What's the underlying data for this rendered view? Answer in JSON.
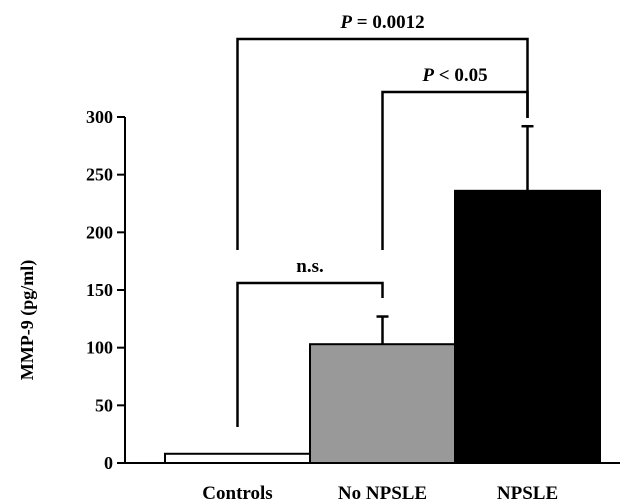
{
  "chart_data": {
    "type": "bar",
    "title": "",
    "xlabel": "",
    "ylabel": "MMP-9 (pg/ml)",
    "ylim": [
      0,
      300
    ],
    "yticks": [
      0,
      50,
      100,
      150,
      200,
      250,
      300
    ],
    "categories": [
      "Controls",
      "No NPSLE",
      "NPSLE"
    ],
    "values": [
      8,
      103,
      236
    ],
    "errors": [
      0,
      24,
      56
    ],
    "bar_colors": [
      "#ffffff",
      "#999999",
      "#000000"
    ],
    "annotations": [
      {
        "label": "n.s.",
        "from": "Controls",
        "to": "No NPSLE"
      },
      {
        "label": "P < 0.05",
        "from": "No NPSLE",
        "to": "NPSLE"
      },
      {
        "label": "P = 0.0012",
        "from": "Controls",
        "to": "NPSLE"
      }
    ],
    "grid": false,
    "legend": "none"
  }
}
